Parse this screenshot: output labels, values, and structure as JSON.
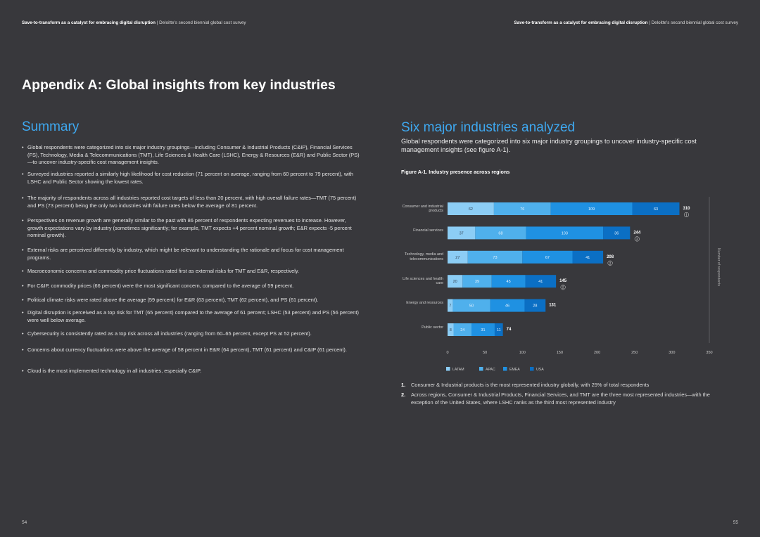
{
  "header_left": {
    "bold": "Save-to-transform as a catalyst for embracing digital disruption",
    "rest": "| Deloitte's second biennial global cost survey"
  },
  "header_right": {
    "bold": "Save-to-transform as a catalyst for embracing digital disruption",
    "rest": "| Deloitte's second biennial global cost survey"
  },
  "title": "Appendix A: Global insights from key industries",
  "left": {
    "heading": "Summary",
    "bullets": [
      "Global respondents were categorized into six major industry groupings—including Consumer & Industrial Products (C&IP), Financial Services (FS), Technology, Media & Telecommunications (TMT), Life Sciences & Health Care (LSHC), Energy & Resources (E&R) and Public Sector (PS)—to uncover industry-specific cost management insights.",
      "Surveyed industries reported a similarly high likelihood for cost reduction (71 percent on average, ranging from 60 percent to 79 percent), with LSHC and Public Sector showing the lowest rates.",
      "The majority of respondents across all industries reported cost targets of less than 20 percent, with high overall failure rates—TMT (75 percent) and PS (73 percent) being the only two industries with failure rates below the average of 81 percent.",
      "Perspectives on revenue growth are generally similar to the past with 86 percent of respondents expecting revenues to increase. However, growth expectations vary by industry (sometimes significantly; for example, TMT expects +4 percent nominal growth; E&R expects -5 percent nominal growth).",
      "External risks are perceived differently by industry, which might be relevant to understanding the rationale and focus for cost management programs.",
      "Macroeconomic concerns and commodity price fluctuations rated first as external risks for TMT and E&R, respectively.",
      "For C&IP, commodity prices (66 percent) were the most significant concern, compared to the average of 59 percent.",
      "Political climate risks were rated above the average (59 percent) for E&R (63 percent), TMT (62 percent), and PS (61 percent).",
      "Digital disruption is perceived as a top risk for TMT (65 percent) compared to the average of 61 percent; LSHC (53 percent) and PS (56 percent) were well below average.",
      "Cybersecurity is consistently rated as a top risk across all industries (ranging from 60–65 percent, except PS at 52 percent).",
      "Concerns about currency fluctuations were above the average of 58 percent in E&R (64 percent), TMT (61 percent) and C&IP (61 percent).",
      "Cloud is the most implemented technology in all industries, especially C&IP."
    ]
  },
  "right": {
    "heading": "Six major industries analyzed",
    "intro": "Global respondents were categorized into six major industry groupings to uncover industry-specific cost management insights (see figure A-1).",
    "figure_title": "Figure A-1. Industry presence across regions",
    "footnotes": [
      {
        "number": "1.",
        "text": "Consumer & Industrial products is the most represented industry globally, with 25% of total respondents"
      },
      {
        "number": "2.",
        "text": "Across regions, Consumer & Industrial Products, Financial Services, and TMT are the three most represented industries—with the exception of the United States, where LSHC ranks as the third most represented industry"
      }
    ]
  },
  "page_left": "54",
  "page_right": "55",
  "chart_data": {
    "type": "stacked-bar-horizontal",
    "categories": [
      "Consumer and industrial products",
      "Financial services",
      "Technology, media and telecommunications",
      "Life sciences and health care",
      "Energy and resources",
      "Public sector"
    ],
    "series": [
      {
        "name": "LATAM",
        "color": "#8ccdf5",
        "values": [
          62,
          37,
          27,
          20,
          7,
          8
        ]
      },
      {
        "name": "APAC",
        "color": "#4fb0ec",
        "values": [
          76,
          68,
          73,
          39,
          50,
          24
        ]
      },
      {
        "name": "EMEA",
        "color": "#1f91e2",
        "values": [
          109,
          103,
          67,
          45,
          46,
          31
        ]
      },
      {
        "name": "USA",
        "color": "#0b6fc4",
        "values": [
          63,
          36,
          41,
          41,
          28,
          11
        ]
      }
    ],
    "totals": [
      310,
      244,
      208,
      145,
      131,
      74
    ],
    "notes": [
      "1",
      "2",
      "2",
      "2",
      null,
      null
    ],
    "x_label": "Number of respondents",
    "xlim": [
      0,
      350
    ],
    "xticks": [
      0,
      50,
      100,
      150,
      200,
      250,
      300,
      350
    ]
  }
}
